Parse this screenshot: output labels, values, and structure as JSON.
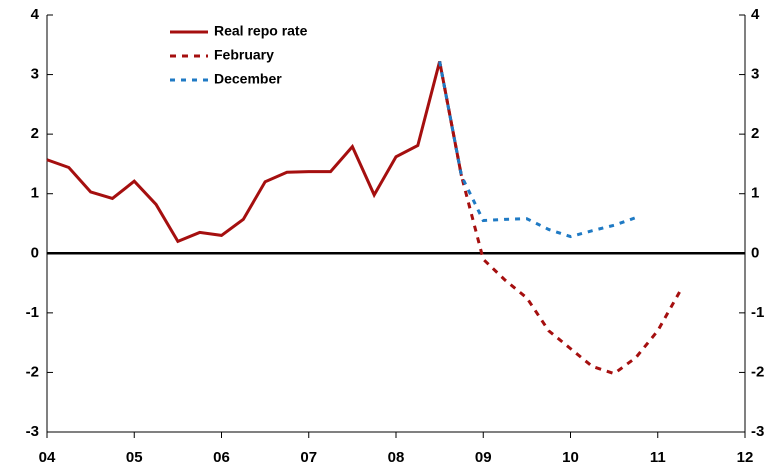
{
  "chart_data": {
    "type": "line",
    "x": [
      2004,
      2004.25,
      2004.5,
      2004.75,
      2005,
      2005.25,
      2005.5,
      2005.75,
      2006,
      2006.25,
      2006.5,
      2006.75,
      2007,
      2007.25,
      2007.5,
      2007.75,
      2008,
      2008.25,
      2008.5,
      2008.75,
      2009,
      2009.25,
      2009.5,
      2009.75,
      2010,
      2010.25,
      2010.5,
      2010.75,
      2011,
      2011.25
    ],
    "series": [
      {
        "name": "Real repo rate",
        "color": "#a50f0f",
        "dash": "solid",
        "values": [
          1.57,
          1.44,
          1.03,
          0.92,
          1.21,
          0.82,
          0.2,
          0.35,
          0.3,
          0.57,
          1.2,
          1.36,
          1.37,
          1.37,
          1.79,
          0.98,
          1.62,
          1.81,
          3.22,
          1.3,
          null,
          null,
          null,
          null,
          null,
          null,
          null,
          null,
          null,
          null
        ]
      },
      {
        "name": "February",
        "color": "#a50f0f",
        "dash": "dashed",
        "values": [
          null,
          null,
          null,
          null,
          null,
          null,
          null,
          null,
          null,
          null,
          null,
          null,
          null,
          null,
          null,
          null,
          null,
          null,
          3.22,
          1.3,
          -0.1,
          -0.45,
          -0.75,
          -1.3,
          -1.6,
          -1.9,
          -2.02,
          -1.75,
          -1.3,
          -0.65
        ]
      },
      {
        "name": "December",
        "color": "#1f7ac4",
        "dash": "dotted",
        "values": [
          null,
          null,
          null,
          null,
          null,
          null,
          null,
          null,
          null,
          null,
          null,
          null,
          null,
          null,
          null,
          null,
          null,
          null,
          3.22,
          1.3,
          0.55,
          0.57,
          0.58,
          0.4,
          0.28,
          0.38,
          0.47,
          0.6,
          null,
          null
        ]
      }
    ],
    "xlim": [
      2004,
      2012
    ],
    "xticks": [
      {
        "value": 2004,
        "label": "04"
      },
      {
        "value": 2005,
        "label": "05"
      },
      {
        "value": 2006,
        "label": "06"
      },
      {
        "value": 2007,
        "label": "07"
      },
      {
        "value": 2008,
        "label": "08"
      },
      {
        "value": 2009,
        "label": "09"
      },
      {
        "value": 2010,
        "label": "10"
      },
      {
        "value": 2011,
        "label": "11"
      },
      {
        "value": 2012,
        "label": "12"
      }
    ],
    "ylim": [
      -3,
      4
    ],
    "yticks": [
      -3,
      -2,
      -1,
      0,
      1,
      2,
      3,
      4
    ],
    "y2lim": [
      -3,
      4
    ],
    "y2ticks": [
      -3,
      -2,
      -1,
      0,
      1,
      2,
      3,
      4
    ],
    "legend": "upper left",
    "grid": false
  }
}
